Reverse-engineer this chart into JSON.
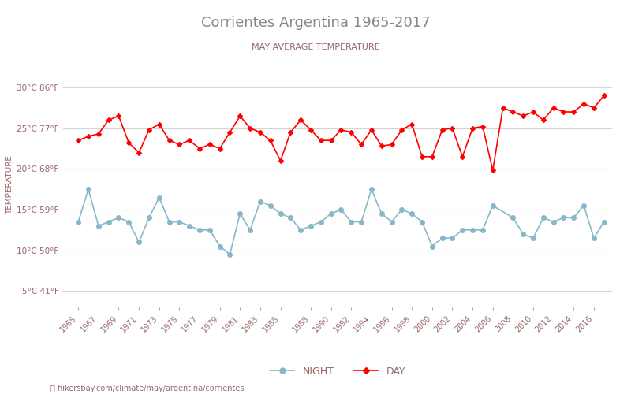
{
  "title": "Corrientes Argentina 1965-2017",
  "subtitle": "MAY AVERAGE TEMPERATURE",
  "ylabel": "TEMPERATURE",
  "background_color": "#ffffff",
  "grid_color": "#d5d5d5",
  "title_color": "#888888",
  "subtitle_color": "#996666",
  "ylabel_color": "#996666",
  "tick_color": "#996666",
  "years": [
    1965,
    1966,
    1967,
    1968,
    1969,
    1970,
    1971,
    1972,
    1973,
    1974,
    1975,
    1976,
    1977,
    1978,
    1979,
    1980,
    1981,
    1982,
    1983,
    1984,
    1985,
    1986,
    1987,
    1988,
    1989,
    1990,
    1991,
    1992,
    1993,
    1994,
    1995,
    1996,
    1997,
    1998,
    1999,
    2000,
    2001,
    2002,
    2003,
    2004,
    2005,
    2006,
    2007,
    2008,
    2009,
    2010,
    2011,
    2012,
    2013,
    2014,
    2015,
    2016,
    2017
  ],
  "day_temps": [
    23.5,
    24.0,
    24.3,
    26.0,
    26.5,
    23.2,
    22.0,
    24.8,
    25.5,
    23.5,
    23.0,
    23.5,
    22.5,
    23.0,
    22.5,
    24.5,
    26.5,
    25.0,
    24.5,
    23.5,
    21.0,
    24.5,
    26.0,
    24.8,
    23.5,
    23.5,
    24.8,
    24.5,
    23.0,
    24.8,
    22.8,
    23.0,
    24.8,
    25.5,
    21.5,
    21.5,
    24.8,
    25.0,
    21.5,
    25.0,
    25.2,
    19.8,
    27.5,
    27.0,
    26.5,
    27.0,
    26.0,
    27.5,
    27.0,
    27.0,
    28.0,
    27.5,
    29.0
  ],
  "night_temps": [
    13.5,
    17.5,
    13.0,
    13.5,
    14.0,
    13.5,
    11.0,
    14.0,
    16.5,
    13.5,
    13.5,
    13.0,
    12.5,
    12.5,
    10.5,
    9.5,
    14.5,
    12.5,
    16.0,
    15.5,
    14.5,
    14.0,
    12.5,
    13.0,
    13.5,
    14.5,
    15.0,
    13.5,
    13.5,
    17.5,
    14.5,
    13.5,
    15.0,
    14.5,
    13.5,
    10.5,
    11.5,
    11.5,
    12.5,
    12.5,
    12.5,
    15.5,
    null,
    14.0,
    12.0,
    11.5,
    14.0,
    13.5,
    14.0,
    14.0,
    15.5,
    11.5,
    13.5
  ],
  "day_color": "#ff0000",
  "night_color": "#88b8c8",
  "day_markersize": 3,
  "night_markersize": 4,
  "day_linewidth": 1.2,
  "night_linewidth": 1.2,
  "yticks_c": [
    5,
    10,
    15,
    20,
    25,
    30
  ],
  "yticks_f": [
    41,
    50,
    59,
    68,
    77,
    86
  ],
  "ylim": [
    3,
    33
  ],
  "xlim": [
    1963.5,
    2017.8
  ],
  "xtick_years": [
    1965,
    1967,
    1969,
    1971,
    1973,
    1975,
    1977,
    1979,
    1981,
    1983,
    1985,
    1988,
    1990,
    1992,
    1994,
    1996,
    1998,
    2000,
    2002,
    2004,
    2006,
    2008,
    2010,
    2012,
    2014,
    2016
  ],
  "watermark": "hikersbay.com/climate/may/argentina/corrientes",
  "legend_night": "NIGHT",
  "legend_day": "DAY"
}
